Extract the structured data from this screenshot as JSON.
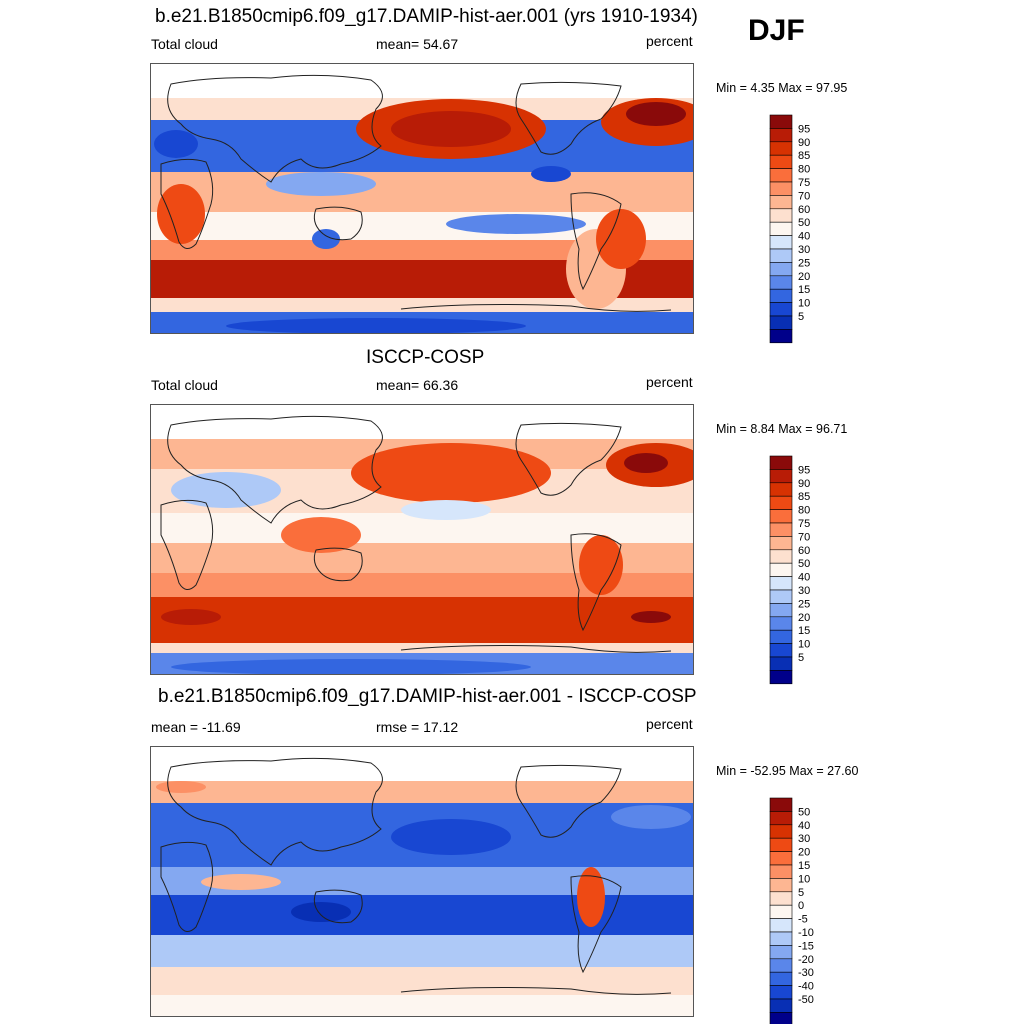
{
  "figure": {
    "season": "DJF"
  },
  "panels": [
    {
      "title": "b.e21.B1850cmip6.f09_g17.DAMIP-hist-aer.001 (yrs 1910-1934)",
      "left_label": "Total cloud",
      "center_label": "mean=  54.67",
      "right_label": "percent",
      "minmax": "Min =   4.35 Max =  97.95",
      "colorbar": {
        "levels": [
          "95",
          "90",
          "85",
          "80",
          "75",
          "70",
          "60",
          "50",
          "40",
          "30",
          "25",
          "20",
          "15",
          "10",
          "5"
        ],
        "colors": [
          "#8a0a0a",
          "#b81c06",
          "#d73202",
          "#ee4a14",
          "#fa6e3b",
          "#fc9065",
          "#fdb692",
          "#fde0cf",
          "#fdf6f0",
          "#d6e6fb",
          "#aec9f7",
          "#84a8f1",
          "#5a86ea",
          "#3366e0",
          "#1847d2",
          "#082fb4",
          "#00008a"
        ]
      }
    },
    {
      "title": "ISCCP-COSP",
      "left_label": "Total cloud",
      "center_label": "mean=  66.36",
      "right_label": "percent",
      "minmax": "Min =   8.84 Max =  96.71",
      "colorbar": {
        "levels": [
          "95",
          "90",
          "85",
          "80",
          "75",
          "70",
          "60",
          "50",
          "40",
          "30",
          "25",
          "20",
          "15",
          "10",
          "5"
        ],
        "colors": [
          "#8a0a0a",
          "#b81c06",
          "#d73202",
          "#ee4a14",
          "#fa6e3b",
          "#fc9065",
          "#fdb692",
          "#fde0cf",
          "#fdf6f0",
          "#d6e6fb",
          "#aec9f7",
          "#84a8f1",
          "#5a86ea",
          "#3366e0",
          "#1847d2",
          "#082fb4",
          "#00008a"
        ]
      }
    },
    {
      "title": "b.e21.B1850cmip6.f09_g17.DAMIP-hist-aer.001 - ISCCP-COSP",
      "left_label": "mean = -11.69",
      "center_label": "rmse =  17.12",
      "right_label": "percent",
      "minmax": "Min = -52.95 Max =  27.60",
      "colorbar": {
        "levels": [
          "50",
          "40",
          "30",
          "20",
          "15",
          "10",
          "5",
          "0",
          "-5",
          "-10",
          "-15",
          "-20",
          "-30",
          "-40",
          "-50"
        ],
        "colors": [
          "#8a0a0a",
          "#b81c06",
          "#d73202",
          "#ee4a14",
          "#fa6e3b",
          "#fc9065",
          "#fdb692",
          "#fde0cf",
          "#fdf6f0",
          "#d6e6fb",
          "#aec9f7",
          "#84a8f1",
          "#5a86ea",
          "#3366e0",
          "#1847d2",
          "#082fb4",
          "#00008a"
        ]
      }
    }
  ]
}
